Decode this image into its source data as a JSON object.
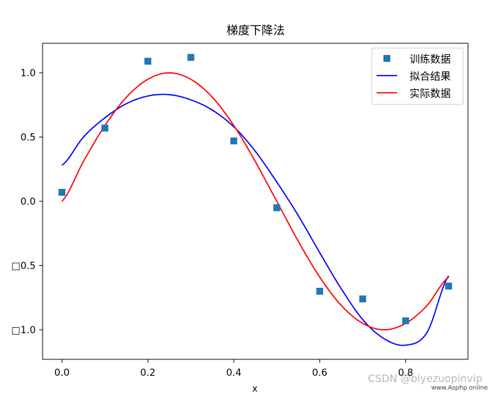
{
  "chart_data": {
    "type": "line",
    "title": "梯度下降法",
    "xlabel": "x",
    "ylabel": "",
    "xlim": [
      -0.045,
      0.945
    ],
    "ylim": [
      -1.23,
      1.23
    ],
    "xticks": [
      0.0,
      0.2,
      0.4,
      0.6,
      0.8
    ],
    "xtick_labels": [
      "0.0",
      "0.2",
      "0.4",
      "0.6",
      "0.8"
    ],
    "yticks": [
      1.0,
      0.5,
      0.0,
      -0.5,
      -1.0
    ],
    "ytick_labels": [
      "1.0",
      "0.5",
      "0.0",
      "□0.5",
      "□1.0"
    ],
    "grid": false,
    "legend": "top-right",
    "series": [
      {
        "name": "训练数据",
        "kind": "scatter",
        "marker": "square",
        "color": "#1f77b4",
        "x": [
          0.0,
          0.1,
          0.2,
          0.3,
          0.4,
          0.5,
          0.6,
          0.7,
          0.8,
          0.9
        ],
        "y": [
          0.07,
          0.57,
          1.09,
          1.12,
          0.47,
          -0.05,
          -0.7,
          -0.76,
          -0.93,
          -0.66
        ]
      },
      {
        "name": "拟合结果",
        "kind": "line",
        "color": "#0000ff",
        "x": [
          0.0,
          0.05,
          0.1,
          0.15,
          0.2,
          0.25,
          0.3,
          0.35,
          0.4,
          0.45,
          0.5,
          0.55,
          0.6,
          0.65,
          0.7,
          0.75,
          0.8,
          0.85,
          0.9
        ],
        "y": [
          0.28,
          0.5,
          0.65,
          0.76,
          0.82,
          0.83,
          0.79,
          0.71,
          0.58,
          0.39,
          0.15,
          -0.11,
          -0.4,
          -0.68,
          -0.92,
          -1.07,
          -1.12,
          -1.02,
          -0.58
        ]
      },
      {
        "name": "实际数据",
        "kind": "line",
        "color": "#ff0000",
        "x": [
          0.0,
          0.05,
          0.1,
          0.15,
          0.2,
          0.25,
          0.3,
          0.35,
          0.4,
          0.45,
          0.5,
          0.55,
          0.6,
          0.65,
          0.7,
          0.75,
          0.8,
          0.85,
          0.9
        ],
        "y": [
          0.0,
          0.31,
          0.59,
          0.81,
          0.95,
          1.0,
          0.95,
          0.81,
          0.59,
          0.31,
          0.0,
          -0.31,
          -0.59,
          -0.81,
          -0.95,
          -1.0,
          -0.95,
          -0.81,
          -0.59
        ]
      }
    ]
  },
  "watermark": {
    "csdn": "CSDN @biyezuopinvip",
    "site": "www.Asphp.online"
  }
}
